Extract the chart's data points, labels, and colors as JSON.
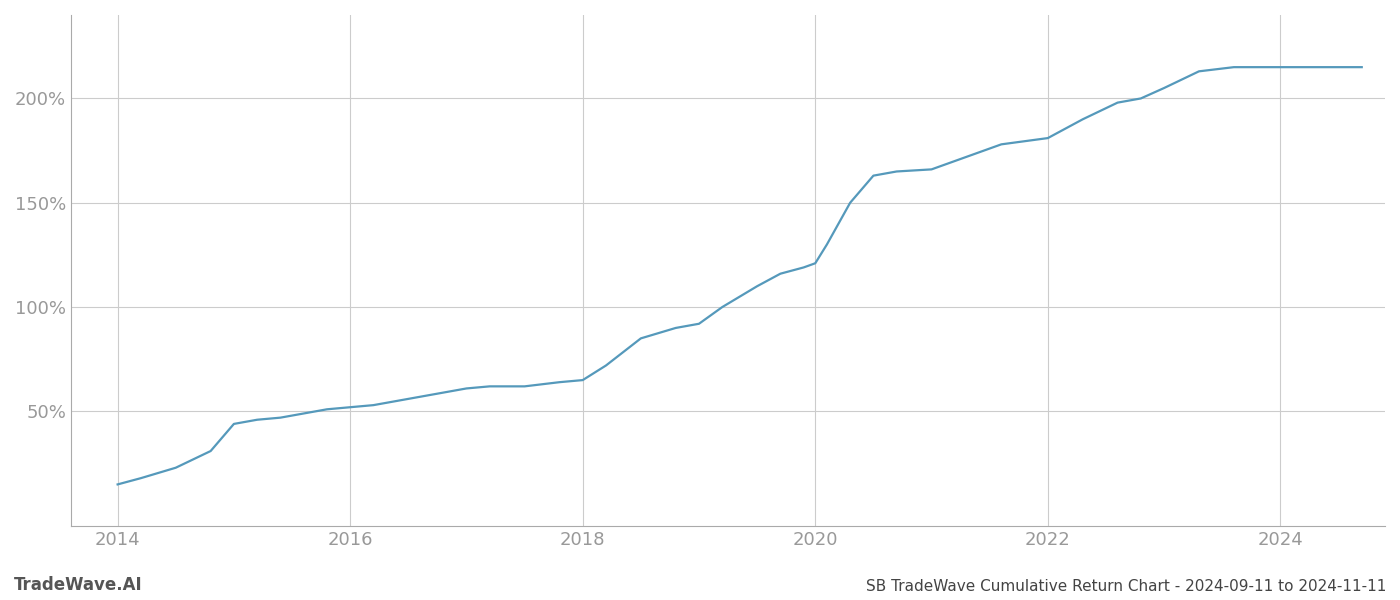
{
  "title": "SB TradeWave Cumulative Return Chart - 2024-09-11 to 2024-11-11",
  "watermark": "TradeWave.AI",
  "line_color": "#5599bb",
  "background_color": "#ffffff",
  "grid_color": "#cccccc",
  "x_years": [
    2014.0,
    2014.2,
    2014.5,
    2014.8,
    2015.0,
    2015.2,
    2015.4,
    2015.6,
    2015.8,
    2016.0,
    2016.2,
    2016.4,
    2016.6,
    2016.8,
    2017.0,
    2017.2,
    2017.5,
    2017.8,
    2018.0,
    2018.2,
    2018.5,
    2018.8,
    2019.0,
    2019.2,
    2019.5,
    2019.7,
    2019.9,
    2020.0,
    2020.1,
    2020.3,
    2020.5,
    2020.7,
    2021.0,
    2021.3,
    2021.6,
    2022.0,
    2022.3,
    2022.6,
    2022.8,
    2023.0,
    2023.3,
    2023.6,
    2023.8,
    2024.0,
    2024.3,
    2024.7
  ],
  "y_values": [
    15,
    18,
    23,
    31,
    44,
    46,
    47,
    49,
    51,
    52,
    53,
    55,
    57,
    59,
    61,
    62,
    62,
    64,
    65,
    72,
    85,
    90,
    92,
    100,
    110,
    116,
    119,
    121,
    130,
    150,
    163,
    165,
    166,
    172,
    178,
    181,
    190,
    198,
    200,
    205,
    213,
    215,
    215,
    215,
    215,
    215
  ],
  "xlim": [
    2013.6,
    2024.9
  ],
  "ylim": [
    -5,
    240
  ],
  "yticks": [
    50,
    100,
    150,
    200
  ],
  "xticks": [
    2014,
    2016,
    2018,
    2020,
    2022,
    2024
  ],
  "tick_label_color": "#999999",
  "line_width": 1.6,
  "title_fontsize": 11,
  "watermark_fontsize": 12,
  "tick_fontsize": 13
}
